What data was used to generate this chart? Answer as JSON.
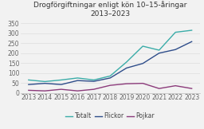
{
  "title": "Drogförgiftningar enligt kön 10–15-åringar\n2013–2023",
  "years": [
    2013,
    2014,
    2015,
    2016,
    2017,
    2018,
    2019,
    2020,
    2021,
    2022,
    2023
  ],
  "totalt": [
    65,
    57,
    65,
    75,
    65,
    85,
    155,
    235,
    215,
    305,
    315
  ],
  "flickor": [
    42,
    48,
    42,
    62,
    58,
    75,
    125,
    148,
    200,
    218,
    258
  ],
  "pojkar": [
    13,
    10,
    18,
    10,
    18,
    38,
    46,
    48,
    22,
    36,
    22
  ],
  "color_totalt": "#3aaca8",
  "color_flickor": "#2e4d8a",
  "color_pojkar": "#8b3a7a",
  "yticks": [
    0,
    50,
    100,
    150,
    200,
    250,
    300,
    350
  ],
  "ylim": [
    0,
    370
  ],
  "legend_labels": [
    "Totalt",
    "Flickor",
    "Pojkar"
  ],
  "background_color": "#f2f2f2",
  "title_fontsize": 6.5,
  "axis_fontsize": 5.5,
  "legend_fontsize": 5.5,
  "linewidth": 1.0
}
